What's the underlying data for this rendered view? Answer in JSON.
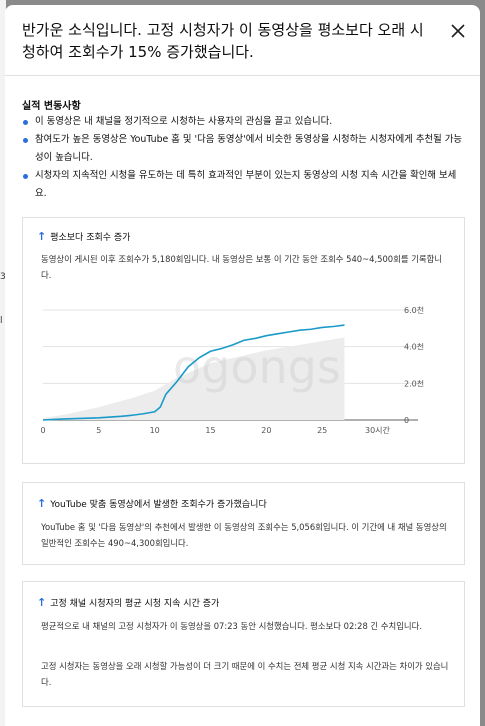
{
  "dialog": {
    "title": "반가운 소식입니다. 고정 시청자가 이 동영상을 평소보다 오래 시청하여 조회수가 15% 증가했습니다.",
    "close_icon": "close-icon"
  },
  "background": {
    "char_1": "3",
    "char_2": "l"
  },
  "performance": {
    "heading": "실적 변동사항",
    "bullets": [
      "이 동영상은 내 채널을 정기적으로 시청하는 사용자의 관심을 끌고 있습니다.",
      "참여도가 높은 동영상은 YouTube 홈 및 '다음 동영상'에서 비슷한 동영상을 시청하는 시청자에게 추천될 가능성이 높습니다.",
      "시청자의 지속적인 시청을 유도하는 데 특히 효과적인 부분이 있는지 동영상의 시청 지속 시간을 확인해 보세요."
    ]
  },
  "views_card": {
    "icon": "arrow-up-icon",
    "title": "평소보다 조회수 증가",
    "text": "동영상이 게시된 이후 조회수가 5,180회입니다. 내 동영상은 보통 이 기간 동안 조회수 540~4,500회를 기록합니다."
  },
  "chart_data": {
    "type": "line",
    "watermark": "ogongs",
    "x_ticks": [
      "0",
      "5",
      "10",
      "15",
      "20",
      "25",
      "30시간"
    ],
    "y_ticks": [
      "0",
      "2.0천",
      "4.0천",
      "6.0천"
    ],
    "xlim": [
      0,
      30
    ],
    "ylim": [
      0,
      6000
    ],
    "grid": true,
    "line_color": "#1a9ac9",
    "band_color": "#ececec",
    "series": [
      {
        "x": [
          0,
          1,
          2,
          3,
          4,
          5,
          6,
          7,
          8,
          9,
          10,
          10.5,
          11,
          12,
          13,
          14,
          15,
          16,
          17,
          18,
          19,
          20,
          21,
          22,
          23,
          24,
          25,
          26,
          27
        ],
        "values": [
          0,
          30,
          60,
          80,
          100,
          120,
          160,
          200,
          260,
          340,
          450,
          700,
          1400,
          2100,
          2900,
          3400,
          3750,
          3900,
          4100,
          4350,
          4450,
          4600,
          4700,
          4800,
          4900,
          4950,
          5050,
          5100,
          5180
        ]
      }
    ],
    "band": {
      "x": [
        0,
        2,
        5,
        8,
        10,
        12,
        15,
        20,
        25,
        27
      ],
      "upper": [
        100,
        300,
        700,
        1200,
        1600,
        2300,
        3100,
        3800,
        4300,
        4500
      ],
      "lower": [
        0,
        0,
        0,
        0,
        0,
        0,
        0,
        0,
        0,
        0
      ]
    }
  },
  "browse_card": {
    "icon": "arrow-up-icon",
    "title": "YouTube 맞춤 동영상에서 발생한 조회수가 증가했습니다",
    "text": "YouTube 홈 및 '다음 동영상'의 추천에서 발생한 이 동영상의 조회수는 5,056회입니다. 이 기간에 내 채널 동영상의 일반적인 조회수는 490~4,300회입니다."
  },
  "watch_card": {
    "icon": "arrow-up-icon",
    "title": "고정 채널 시청자의 평균 시청 지속 시간 증가",
    "text_1": "평균적으로 내 채널의 고정 시청자가 이 동영상을 07:23 동안 시청했습니다. 평소보다 02:28 긴 수치입니다.",
    "text_2": "고정 시청자는 동영상을 오래 시청할 가능성이 더 크기 때문에 이 수치는 전체 평균 시청 지속 시간과는 차이가 있습니다."
  }
}
